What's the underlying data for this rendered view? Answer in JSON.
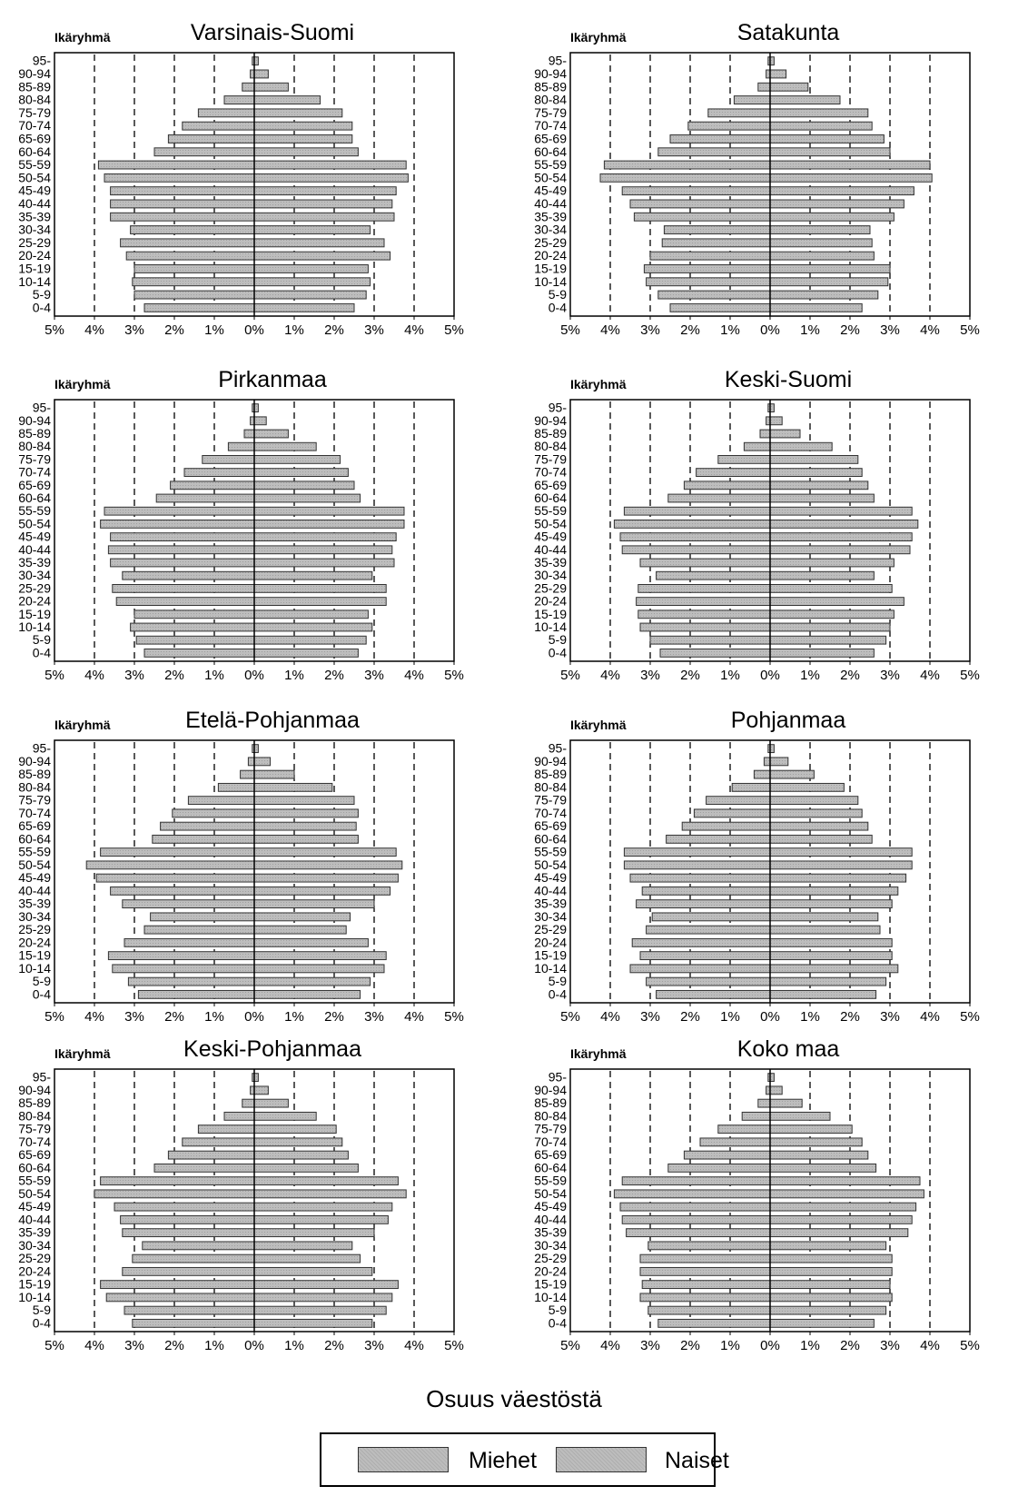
{
  "age_group_label": "Ikäryhmä",
  "x_axis_title": "Osuus väestöstä",
  "legend": {
    "men": "Miehet",
    "women": "Naiset"
  },
  "colors": {
    "bar_fill": "#bdbdbd",
    "bar_stroke": "#333333",
    "gridline": "#000000"
  },
  "chart_data": [
    {
      "type": "bar",
      "title": "Varsinais-Suomi",
      "categories": [
        "95-",
        "90-94",
        "85-89",
        "80-84",
        "75-79",
        "70-74",
        "65-69",
        "60-64",
        "55-59",
        "50-54",
        "45-49",
        "40-44",
        "35-39",
        "30-34",
        "25-29",
        "20-24",
        "15-19",
        "10-14",
        "5-9",
        "0-4"
      ],
      "xlim": [
        -5,
        5
      ],
      "xticks": [
        "5%",
        "4%",
        "3%",
        "2%",
        "1%",
        "0%",
        "1%",
        "2%",
        "3%",
        "4%",
        "5%"
      ],
      "grid": "dashed-vertical",
      "series": [
        {
          "name": "Miehet",
          "values": [
            0.05,
            0.1,
            0.3,
            0.75,
            1.4,
            1.8,
            2.15,
            2.5,
            3.9,
            3.75,
            3.6,
            3.6,
            3.6,
            3.1,
            3.35,
            3.2,
            3.0,
            3.05,
            3.0,
            2.75
          ]
        },
        {
          "name": "Naiset",
          "values": [
            0.1,
            0.35,
            0.85,
            1.65,
            2.2,
            2.45,
            2.45,
            2.6,
            3.8,
            3.85,
            3.55,
            3.45,
            3.5,
            2.9,
            3.25,
            3.4,
            2.85,
            2.9,
            2.8,
            2.5
          ]
        }
      ]
    },
    {
      "type": "bar",
      "title": "Satakunta",
      "categories": [
        "95-",
        "90-94",
        "85-89",
        "80-84",
        "75-79",
        "70-74",
        "65-69",
        "60-64",
        "55-59",
        "50-54",
        "45-49",
        "40-44",
        "35-39",
        "30-34",
        "25-29",
        "20-24",
        "15-19",
        "10-14",
        "5-9",
        "0-4"
      ],
      "xlim": [
        -5,
        5
      ],
      "xticks": [
        "5%",
        "4%",
        "3%",
        "2%",
        "1%",
        "0%",
        "1%",
        "2%",
        "3%",
        "4%",
        "5%"
      ],
      "grid": "dashed-vertical",
      "series": [
        {
          "name": "Miehet",
          "values": [
            0.05,
            0.1,
            0.3,
            0.9,
            1.55,
            2.05,
            2.5,
            2.8,
            4.15,
            4.25,
            3.7,
            3.5,
            3.4,
            2.65,
            2.7,
            3.0,
            3.15,
            3.1,
            2.8,
            2.5
          ]
        },
        {
          "name": "Naiset",
          "values": [
            0.1,
            0.4,
            0.95,
            1.75,
            2.45,
            2.55,
            2.85,
            3.0,
            4.0,
            4.05,
            3.6,
            3.35,
            3.1,
            2.5,
            2.55,
            2.6,
            3.0,
            2.95,
            2.7,
            2.3
          ]
        }
      ]
    },
    {
      "type": "bar",
      "title": "Pirkanmaa",
      "categories": [
        "95-",
        "90-94",
        "85-89",
        "80-84",
        "75-79",
        "70-74",
        "65-69",
        "60-64",
        "55-59",
        "50-54",
        "45-49",
        "40-44",
        "35-39",
        "30-34",
        "25-29",
        "20-24",
        "15-19",
        "10-14",
        "5-9",
        "0-4"
      ],
      "xlim": [
        -5,
        5
      ],
      "xticks": [
        "5%",
        "4%",
        "3%",
        "2%",
        "1%",
        "0%",
        "1%",
        "2%",
        "3%",
        "4%",
        "5%"
      ],
      "grid": "dashed-vertical",
      "series": [
        {
          "name": "Miehet",
          "values": [
            0.05,
            0.1,
            0.25,
            0.65,
            1.3,
            1.75,
            2.1,
            2.45,
            3.75,
            3.85,
            3.6,
            3.65,
            3.6,
            3.3,
            3.55,
            3.45,
            3.0,
            3.1,
            2.95,
            2.75
          ]
        },
        {
          "name": "Naiset",
          "values": [
            0.1,
            0.3,
            0.85,
            1.55,
            2.15,
            2.35,
            2.5,
            2.65,
            3.75,
            3.75,
            3.55,
            3.45,
            3.5,
            2.95,
            3.3,
            3.3,
            2.85,
            2.95,
            2.8,
            2.6
          ]
        }
      ]
    },
    {
      "type": "bar",
      "title": "Keski-Suomi",
      "categories": [
        "95-",
        "90-94",
        "85-89",
        "80-84",
        "75-79",
        "70-74",
        "65-69",
        "60-64",
        "55-59",
        "50-54",
        "45-49",
        "40-44",
        "35-39",
        "30-34",
        "25-29",
        "20-24",
        "15-19",
        "10-14",
        "5-9",
        "0-4"
      ],
      "xlim": [
        -5,
        5
      ],
      "xticks": [
        "5%",
        "4%",
        "3%",
        "2%",
        "1%",
        "0%",
        "1%",
        "2%",
        "3%",
        "4%",
        "5%"
      ],
      "grid": "dashed-vertical",
      "series": [
        {
          "name": "Miehet",
          "values": [
            0.05,
            0.1,
            0.25,
            0.65,
            1.3,
            1.85,
            2.15,
            2.55,
            3.65,
            3.9,
            3.75,
            3.7,
            3.25,
            2.85,
            3.3,
            3.35,
            3.3,
            3.25,
            3.0,
            2.75
          ]
        },
        {
          "name": "Naiset",
          "values": [
            0.1,
            0.3,
            0.75,
            1.55,
            2.2,
            2.3,
            2.45,
            2.6,
            3.55,
            3.7,
            3.55,
            3.5,
            3.1,
            2.6,
            3.05,
            3.35,
            3.1,
            3.0,
            2.9,
            2.6
          ]
        }
      ]
    },
    {
      "type": "bar",
      "title": "Etelä-Pohjanmaa",
      "categories": [
        "95-",
        "90-94",
        "85-89",
        "80-84",
        "75-79",
        "70-74",
        "65-69",
        "60-64",
        "55-59",
        "50-54",
        "45-49",
        "40-44",
        "35-39",
        "30-34",
        "25-29",
        "20-24",
        "15-19",
        "10-14",
        "5-9",
        "0-4"
      ],
      "xlim": [
        -5,
        5
      ],
      "xticks": [
        "5%",
        "4%",
        "3%",
        "2%",
        "1%",
        "0%",
        "1%",
        "2%",
        "3%",
        "4%",
        "5%"
      ],
      "grid": "dashed-vertical",
      "series": [
        {
          "name": "Miehet",
          "values": [
            0.05,
            0.15,
            0.35,
            0.9,
            1.65,
            2.05,
            2.35,
            2.55,
            3.85,
            4.2,
            3.95,
            3.6,
            3.3,
            2.6,
            2.75,
            3.25,
            3.65,
            3.55,
            3.15,
            2.9
          ]
        },
        {
          "name": "Naiset",
          "values": [
            0.1,
            0.4,
            1.0,
            1.95,
            2.5,
            2.6,
            2.55,
            2.6,
            3.55,
            3.7,
            3.6,
            3.4,
            3.0,
            2.4,
            2.3,
            2.85,
            3.3,
            3.25,
            2.9,
            2.65
          ]
        }
      ]
    },
    {
      "type": "bar",
      "title": "Pohjanmaa",
      "categories": [
        "95-",
        "90-94",
        "85-89",
        "80-84",
        "75-79",
        "70-74",
        "65-69",
        "60-64",
        "55-59",
        "50-54",
        "45-49",
        "40-44",
        "35-39",
        "30-34",
        "25-29",
        "20-24",
        "15-19",
        "10-14",
        "5-9",
        "0-4"
      ],
      "xlim": [
        -5,
        5
      ],
      "xticks": [
        "5%",
        "4%",
        "3%",
        "2%",
        "1%",
        "0%",
        "1%",
        "2%",
        "3%",
        "4%",
        "5%"
      ],
      "grid": "dashed-vertical",
      "series": [
        {
          "name": "Miehet",
          "values": [
            0.05,
            0.15,
            0.4,
            0.95,
            1.6,
            1.9,
            2.2,
            2.6,
            3.65,
            3.65,
            3.5,
            3.2,
            3.35,
            2.95,
            3.1,
            3.45,
            3.25,
            3.5,
            3.1,
            2.85
          ]
        },
        {
          "name": "Naiset",
          "values": [
            0.1,
            0.45,
            1.1,
            1.85,
            2.2,
            2.3,
            2.45,
            2.55,
            3.55,
            3.55,
            3.4,
            3.2,
            3.05,
            2.7,
            2.75,
            3.05,
            3.05,
            3.2,
            2.9,
            2.65
          ]
        }
      ]
    },
    {
      "type": "bar",
      "title": "Keski-Pohjanmaa",
      "categories": [
        "95-",
        "90-94",
        "85-89",
        "80-84",
        "75-79",
        "70-74",
        "65-69",
        "60-64",
        "55-59",
        "50-54",
        "45-49",
        "40-44",
        "35-39",
        "30-34",
        "25-29",
        "20-24",
        "15-19",
        "10-14",
        "5-9",
        "0-4"
      ],
      "xlim": [
        -5,
        5
      ],
      "xticks": [
        "5%",
        "4%",
        "3%",
        "2%",
        "1%",
        "0%",
        "1%",
        "2%",
        "3%",
        "4%",
        "5%"
      ],
      "grid": "dashed-vertical",
      "series": [
        {
          "name": "Miehet",
          "values": [
            0.05,
            0.1,
            0.3,
            0.75,
            1.4,
            1.8,
            2.15,
            2.5,
            3.85,
            4.0,
            3.5,
            3.35,
            3.3,
            2.8,
            3.05,
            3.3,
            3.85,
            3.7,
            3.25,
            3.05
          ]
        },
        {
          "name": "Naiset",
          "values": [
            0.1,
            0.35,
            0.85,
            1.55,
            2.05,
            2.2,
            2.35,
            2.6,
            3.6,
            3.8,
            3.45,
            3.35,
            3.0,
            2.45,
            2.65,
            2.95,
            3.6,
            3.45,
            3.3,
            2.95
          ]
        }
      ]
    },
    {
      "type": "bar",
      "title": "Koko maa",
      "categories": [
        "95-",
        "90-94",
        "85-89",
        "80-84",
        "75-79",
        "70-74",
        "65-69",
        "60-64",
        "55-59",
        "50-54",
        "45-49",
        "40-44",
        "35-39",
        "30-34",
        "25-29",
        "20-24",
        "15-19",
        "10-14",
        "5-9",
        "0-4"
      ],
      "xlim": [
        -5,
        5
      ],
      "xticks": [
        "5%",
        "4%",
        "3%",
        "2%",
        "1%",
        "0%",
        "1%",
        "2%",
        "3%",
        "4%",
        "5%"
      ],
      "grid": "dashed-vertical",
      "series": [
        {
          "name": "Miehet",
          "values": [
            0.05,
            0.1,
            0.3,
            0.7,
            1.3,
            1.75,
            2.15,
            2.55,
            3.7,
            3.9,
            3.75,
            3.7,
            3.6,
            3.05,
            3.25,
            3.25,
            3.2,
            3.25,
            3.05,
            2.8
          ]
        },
        {
          "name": "Naiset",
          "values": [
            0.1,
            0.3,
            0.8,
            1.5,
            2.05,
            2.3,
            2.45,
            2.65,
            3.75,
            3.85,
            3.65,
            3.55,
            3.45,
            2.9,
            3.05,
            3.05,
            3.0,
            3.05,
            2.9,
            2.6
          ]
        }
      ]
    }
  ]
}
